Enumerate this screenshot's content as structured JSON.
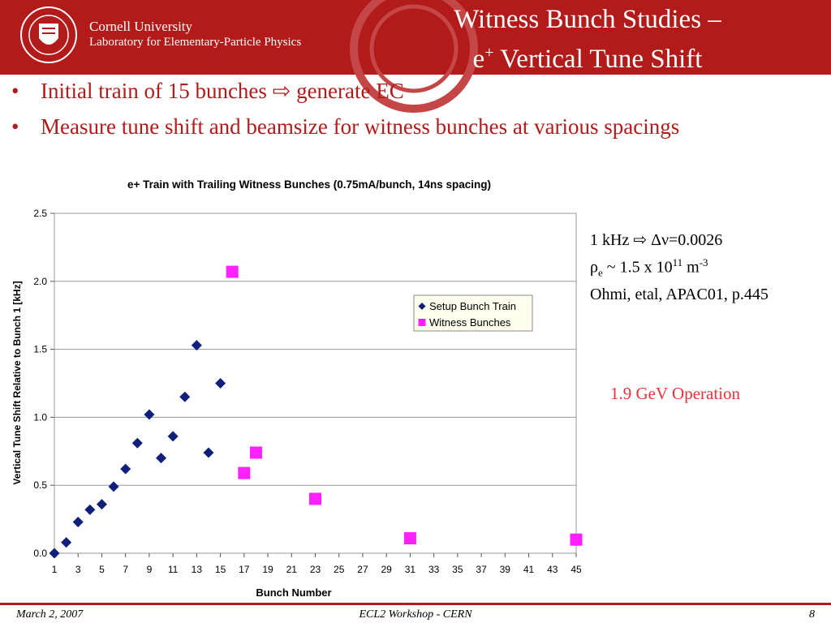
{
  "header": {
    "university": "Cornell University",
    "laboratory": "Laboratory for Elementary-Particle Physics",
    "title_line1": "Witness Bunch Studies –",
    "title_line2_prefix": "e",
    "title_line2_sup": "+",
    "title_line2_suffix": " Vertical Tune Shift",
    "brand_color": "#b31b1b"
  },
  "bullets": [
    {
      "marker": "•",
      "before": "Initial train of 15 bunches ",
      "arrow": "⇨",
      "after": " generate EC"
    },
    {
      "marker": "•",
      "text": "Measure tune shift and beamsize for witness bunches at various spacings"
    }
  ],
  "notes": {
    "line1_a": "1 kHz ",
    "line1_arrow": "⇨",
    "line1_b": " Δν=0.0026",
    "line2_rho": "ρ",
    "line2_sub": "e",
    "line2_mid": " ~ 1.5 x 10",
    "line2_sup1": "11",
    "line2_unit": " m",
    "line2_sup2": "-3",
    "line3": "Ohmi, etal, APAC01, p.445",
    "operation": "1.9 GeV Operation"
  },
  "footer": {
    "date": "March 2, 2007",
    "workshop": "ECL2 Workshop - CERN",
    "page": "8"
  },
  "chart_data": {
    "type": "scatter",
    "title": "e+ Train with Trailing Witness Bunches (0.75mA/bunch, 14ns spacing)",
    "xlabel": "Bunch Number",
    "ylabel": "Vertical Tune Shift Relative to Bunch 1 [kHz]",
    "xlim": [
      1,
      45
    ],
    "ylim": [
      0,
      2.5
    ],
    "xticks": [
      1,
      3,
      5,
      7,
      9,
      11,
      13,
      15,
      17,
      19,
      21,
      23,
      25,
      27,
      29,
      31,
      33,
      35,
      37,
      39,
      41,
      43,
      45
    ],
    "yticks": [
      0.0,
      0.5,
      1.0,
      1.5,
      2.0,
      2.5
    ],
    "ytick_labels": [
      "0.0",
      "0.5",
      "1.0",
      "1.5",
      "2.0",
      "2.5"
    ],
    "grid": "horizontal",
    "legend_position": "right",
    "series": [
      {
        "name": "Setup Bunch Train",
        "marker": "diamond",
        "color": "#0f1f7a",
        "points": [
          [
            1,
            0.0
          ],
          [
            2,
            0.08
          ],
          [
            3,
            0.23
          ],
          [
            4,
            0.32
          ],
          [
            5,
            0.36
          ],
          [
            6,
            0.49
          ],
          [
            7,
            0.62
          ],
          [
            8,
            0.81
          ],
          [
            9,
            1.02
          ],
          [
            10,
            0.7
          ],
          [
            11,
            0.86
          ],
          [
            12,
            1.15
          ],
          [
            13,
            1.53
          ],
          [
            14,
            0.74
          ],
          [
            15,
            1.25
          ]
        ]
      },
      {
        "name": "Witness Bunches",
        "marker": "square",
        "color": "#ff1fff",
        "points": [
          [
            16,
            2.07
          ],
          [
            17,
            0.59
          ],
          [
            18,
            0.74
          ],
          [
            23,
            0.4
          ],
          [
            31,
            0.11
          ],
          [
            45,
            0.1
          ]
        ]
      }
    ]
  }
}
